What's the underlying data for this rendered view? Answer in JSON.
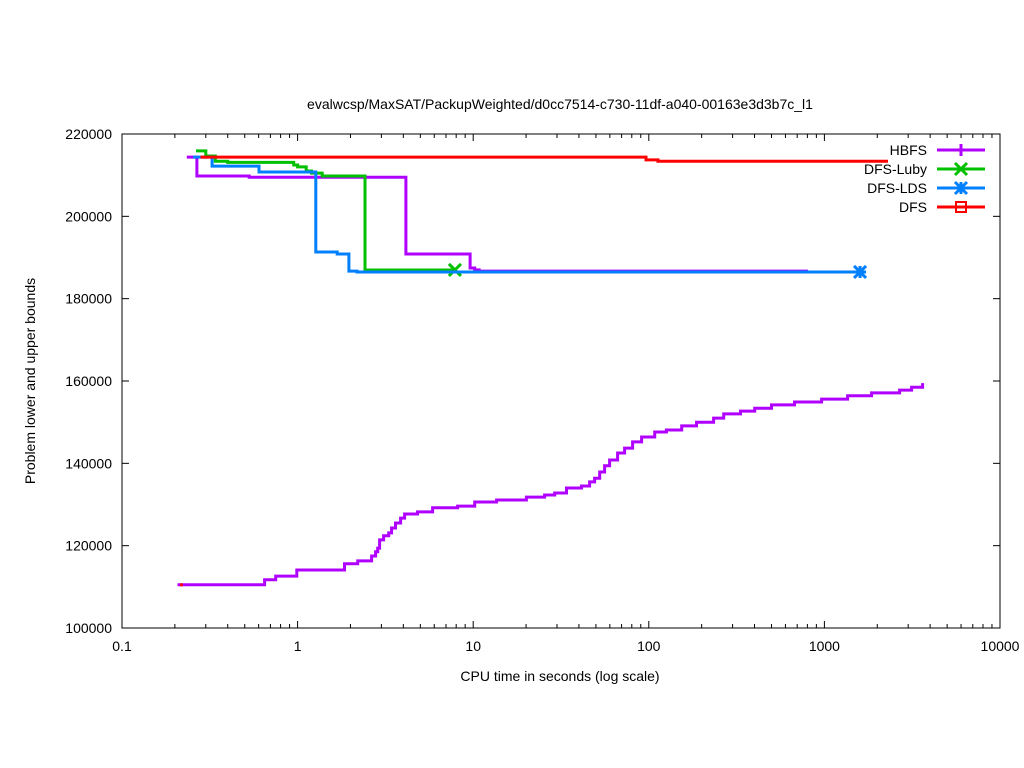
{
  "chart_data": {
    "type": "line",
    "title": "evalwcsp/MaxSAT/PackupWeighted/d0cc7514-c730-11df-a040-00163e3d3b7c_l1",
    "xlabel": "CPU time in seconds (log scale)",
    "ylabel": "Problem lower and upper bounds",
    "xscale": "log",
    "xlim": [
      0.1,
      10000
    ],
    "ylim": [
      100000,
      220000
    ],
    "xticks": [
      0.1,
      1,
      10,
      100,
      1000,
      10000
    ],
    "xtick_labels": [
      "0.1",
      "1",
      "10",
      "100",
      "1000",
      "10000"
    ],
    "yticks": [
      100000,
      120000,
      140000,
      160000,
      180000,
      200000,
      220000
    ],
    "ytick_labels": [
      "100000",
      "120000",
      "140000",
      "160000",
      "180000",
      "200000",
      "220000"
    ],
    "legend_position": "top-right",
    "series": [
      {
        "name": "HBFS",
        "color": "#b000ff",
        "marker": "plus",
        "end_marker": false,
        "segments": [
          [
            [
              0.234,
              214400
            ],
            [
              0.267,
              209800
            ],
            [
              0.53,
              209500
            ],
            [
              4.14,
              190850
            ],
            [
              9.6,
              187450
            ],
            [
              10.2,
              187000
            ],
            [
              10.8,
              186700
            ],
            [
              806,
              186700
            ]
          ],
          [
            [
              0.207,
              110500
            ],
            [
              0.649,
              111700
            ],
            [
              0.75,
              112600
            ],
            [
              0.99,
              114100
            ],
            [
              1.85,
              115600
            ],
            [
              2.2,
              116300
            ],
            [
              2.64,
              117500
            ],
            [
              2.78,
              118500
            ],
            [
              2.86,
              119400
            ],
            [
              2.93,
              121400
            ],
            [
              3.09,
              122400
            ],
            [
              3.3,
              123100
            ],
            [
              3.43,
              124300
            ],
            [
              3.61,
              125500
            ],
            [
              3.86,
              126700
            ],
            [
              4.07,
              127700
            ],
            [
              4.82,
              128200
            ],
            [
              5.87,
              129200
            ],
            [
              8.15,
              129600
            ],
            [
              10.2,
              130600
            ],
            [
              13.6,
              131100
            ],
            [
              20.1,
              131800
            ],
            [
              25.5,
              132300
            ],
            [
              29.1,
              132800
            ],
            [
              34.0,
              134000
            ],
            [
              41.4,
              134500
            ],
            [
              46.0,
              135500
            ],
            [
              49.1,
              136400
            ],
            [
              52.5,
              137900
            ],
            [
              56.0,
              139400
            ],
            [
              59.8,
              140800
            ],
            [
              66.4,
              142500
            ],
            [
              72.8,
              143700
            ],
            [
              80.9,
              145200
            ],
            [
              91.0,
              146400
            ],
            [
              108,
              147600
            ],
            [
              126,
              148100
            ],
            [
              154,
              149100
            ],
            [
              187,
              150000
            ],
            [
              234,
              151000
            ],
            [
              267,
              152000
            ],
            [
              333,
              152700
            ],
            [
              401,
              153400
            ],
            [
              500,
              154200
            ],
            [
              676,
              154900
            ],
            [
              964,
              155600
            ],
            [
              1355,
              156400
            ],
            [
              1856,
              157100
            ],
            [
              2681,
              157800
            ],
            [
              3139,
              158500
            ],
            [
              3624,
              159500
            ]
          ]
        ]
      },
      {
        "name": "DFS-Luby",
        "color": "#00c000",
        "marker": "cross",
        "end_marker": true,
        "segments": [
          [
            [
              0.264,
              215900
            ],
            [
              0.3,
              214650
            ],
            [
              0.34,
              213400
            ],
            [
              0.4,
              213100
            ],
            [
              0.95,
              212470
            ],
            [
              1.0,
              212000
            ],
            [
              1.12,
              211000
            ],
            [
              1.2,
              210500
            ],
            [
              1.38,
              209800
            ],
            [
              2.42,
              186970
            ],
            [
              7.87,
              186970
            ]
          ]
        ]
      },
      {
        "name": "DFS-LDS",
        "color": "#0080ff",
        "marker": "star",
        "end_marker": true,
        "segments": [
          [
            [
              0.254,
              214400
            ],
            [
              0.326,
              212200
            ],
            [
              0.603,
              210770
            ],
            [
              1.27,
              191340
            ],
            [
              1.68,
              190850
            ],
            [
              1.96,
              186700
            ],
            [
              2.18,
              186480
            ],
            [
              1596,
              186480
            ]
          ]
        ]
      },
      {
        "name": "DFS",
        "color": "#ff0000",
        "marker": "square",
        "end_marker": false,
        "segments": [
          [
            [
              0.28,
              214400
            ],
            [
              96.4,
              213700
            ],
            [
              112.8,
              213400
            ],
            [
              2301,
              213400
            ]
          ],
          [
            [
              0.214,
              110500
            ],
            [
              0.222,
              110500
            ]
          ]
        ]
      }
    ]
  }
}
